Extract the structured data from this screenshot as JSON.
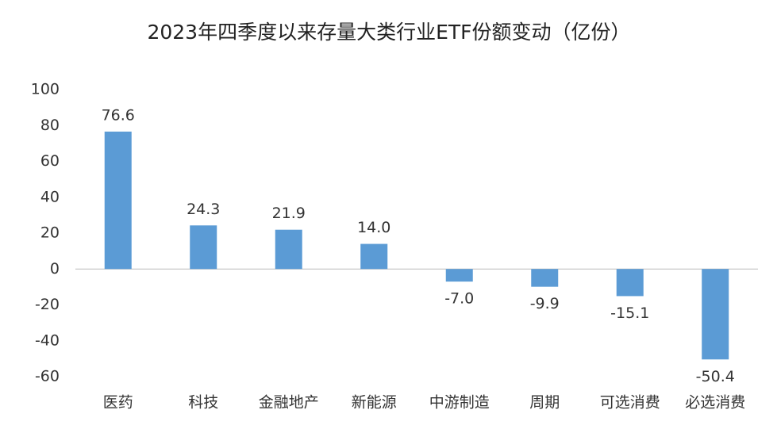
{
  "chart_data": {
    "type": "bar",
    "title": "2023年四季度以来存量大类行业ETF份额变动（亿份）",
    "categories": [
      "医药",
      "科技",
      "金融地产",
      "新能源",
      "中游制造",
      "周期",
      "可选消费",
      "必选消费"
    ],
    "values": [
      76.6,
      24.3,
      21.9,
      14.0,
      -7.0,
      -9.9,
      -15.1,
      -50.4
    ],
    "value_labels": [
      "76.6",
      "24.3",
      "21.9",
      "14.0",
      "-7.0",
      "-9.9",
      "-15.1",
      "-50.4"
    ],
    "color": "#5b9bd5",
    "ylim": [
      -60,
      100
    ],
    "yticks": [
      -60,
      -40,
      -20,
      0,
      20,
      40,
      60,
      80,
      100
    ],
    "grid": false
  }
}
